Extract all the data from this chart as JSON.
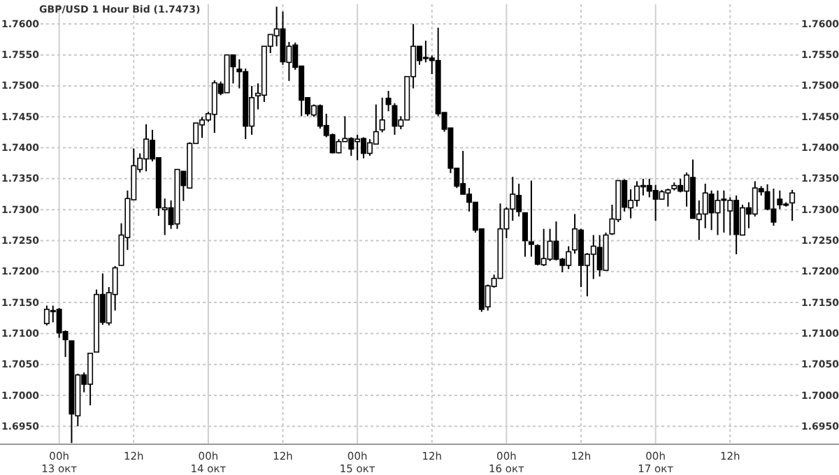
{
  "chart_data": {
    "type": "candlestick",
    "title": "GBP/USD 1 Hour Bid (1.7473)",
    "categories": [
      null,
      null,
      "00h\n13 окт",
      null,
      null,
      null,
      null,
      null,
      null,
      null,
      null,
      null,
      null,
      null,
      "12h",
      null,
      null,
      null,
      null,
      null,
      null,
      null,
      null,
      null,
      null,
      null,
      "00h\n14 окт",
      null,
      null,
      null,
      null,
      null,
      null,
      null,
      null,
      null,
      null,
      null,
      "12h",
      null,
      null,
      null,
      null,
      null,
      null,
      null,
      null,
      null,
      null,
      null,
      "00h\n15 окт",
      null,
      null,
      null,
      null,
      null,
      null,
      null,
      null,
      null,
      null,
      null,
      "12h",
      null,
      null,
      null,
      null,
      null,
      null,
      null,
      null,
      null,
      null,
      null,
      "00h\n16 окт",
      null,
      null,
      null,
      null,
      null,
      null,
      null,
      null,
      null,
      null,
      null,
      "12h",
      null,
      null,
      null,
      null,
      null,
      null,
      null,
      null,
      null,
      null,
      null,
      "00h\n17 окт",
      null,
      null,
      null,
      null,
      null,
      null,
      null,
      null,
      null,
      null,
      null,
      "12h",
      null,
      null,
      null,
      null,
      null,
      null,
      null,
      null,
      null,
      null
    ],
    "ohlc": [
      [
        1.7116,
        1.7145,
        1.7113,
        1.7139
      ],
      [
        1.7137,
        1.7145,
        1.7118,
        1.7136
      ],
      [
        1.7139,
        1.7141,
        1.7093,
        1.7101
      ],
      [
        1.7103,
        1.7105,
        1.7062,
        1.709
      ],
      [
        1.7088,
        1.7088,
        1.6923,
        1.697
      ],
      [
        1.6967,
        1.7035,
        1.695,
        1.7033
      ],
      [
        1.7033,
        1.7037,
        1.7005,
        1.7018
      ],
      [
        1.7018,
        1.7068,
        1.6984,
        1.7068
      ],
      [
        1.707,
        1.7171,
        1.707,
        1.7163
      ],
      [
        1.7163,
        1.7197,
        1.7114,
        1.7118
      ],
      [
        1.7117,
        1.7175,
        1.7113,
        1.7166
      ],
      [
        1.7163,
        1.7209,
        1.7137,
        1.7206
      ],
      [
        1.721,
        1.7278,
        1.721,
        1.7259
      ],
      [
        1.7255,
        1.7331,
        1.7235,
        1.7318
      ],
      [
        1.7316,
        1.7399,
        1.7316,
        1.7371
      ],
      [
        1.7365,
        1.7391,
        1.736,
        1.7383
      ],
      [
        1.7382,
        1.7438,
        1.7362,
        1.7414
      ],
      [
        1.7412,
        1.7429,
        1.7378,
        1.7382
      ],
      [
        1.7384,
        1.7384,
        1.729,
        1.7303
      ],
      [
        1.73,
        1.7318,
        1.7259,
        1.7303
      ],
      [
        1.7303,
        1.7315,
        1.7269,
        1.7276
      ],
      [
        1.7277,
        1.7365,
        1.7269,
        1.7365
      ],
      [
        1.7362,
        1.7362,
        1.7314,
        1.7339
      ],
      [
        1.7335,
        1.7409,
        1.7334,
        1.7407
      ],
      [
        1.7407,
        1.744,
        1.7407,
        1.744
      ],
      [
        1.7437,
        1.745,
        1.7416,
        1.7445
      ],
      [
        1.7445,
        1.7458,
        1.7442,
        1.7455
      ],
      [
        1.7454,
        1.7509,
        1.7424,
        1.7505
      ],
      [
        1.7503,
        1.7507,
        1.7485,
        1.7488
      ],
      [
        1.7489,
        1.755,
        1.7489,
        1.755
      ],
      [
        1.755,
        1.755,
        1.7504,
        1.7531
      ],
      [
        1.7527,
        1.7543,
        1.7496,
        1.7523
      ],
      [
        1.7523,
        1.7528,
        1.7414,
        1.7435
      ],
      [
        1.7435,
        1.75,
        1.7421,
        1.7481
      ],
      [
        1.7484,
        1.7504,
        1.7462,
        1.7488
      ],
      [
        1.7485,
        1.7564,
        1.7474,
        1.7564
      ],
      [
        1.7564,
        1.7583,
        1.7553,
        1.7583
      ],
      [
        1.7581,
        1.7628,
        1.7564,
        1.7592
      ],
      [
        1.7592,
        1.762,
        1.7534,
        1.7539
      ],
      [
        1.7538,
        1.7571,
        1.7508,
        1.7564
      ],
      [
        1.7566,
        1.757,
        1.7526,
        1.753
      ],
      [
        1.7532,
        1.7532,
        1.7451,
        1.7477
      ],
      [
        1.7481,
        1.7481,
        1.7451,
        1.7455
      ],
      [
        1.7453,
        1.747,
        1.745,
        1.7468
      ],
      [
        1.7468,
        1.747,
        1.7431,
        1.7435
      ],
      [
        1.7436,
        1.7455,
        1.7417,
        1.742
      ],
      [
        1.7421,
        1.7423,
        1.7391,
        1.7392
      ],
      [
        1.7392,
        1.7414,
        1.7391,
        1.741
      ],
      [
        1.741,
        1.7451,
        1.741,
        1.7415
      ],
      [
        1.7415,
        1.7417,
        1.7387,
        1.7398
      ],
      [
        1.741,
        1.7421,
        1.738,
        1.7414
      ],
      [
        1.7415,
        1.7417,
        1.7383,
        1.7391
      ],
      [
        1.7391,
        1.7414,
        1.7387,
        1.7408
      ],
      [
        1.7406,
        1.747,
        1.7406,
        1.7426
      ],
      [
        1.7429,
        1.7481,
        1.7425,
        1.7445
      ],
      [
        1.748,
        1.7492,
        1.7459,
        1.747
      ],
      [
        1.7468,
        1.7472,
        1.7421,
        1.7435
      ],
      [
        1.7435,
        1.7451,
        1.743,
        1.7445
      ],
      [
        1.7445,
        1.7515,
        1.7445,
        1.7515
      ],
      [
        1.7515,
        1.76,
        1.7496,
        1.7564
      ],
      [
        1.7564,
        1.7564,
        1.7534,
        1.7541
      ],
      [
        1.7546,
        1.7573,
        1.7538,
        1.7545
      ],
      [
        1.7545,
        1.7549,
        1.7519,
        1.7541
      ],
      [
        1.7541,
        1.7594,
        1.7451,
        1.7455
      ],
      [
        1.7457,
        1.7457,
        1.7426,
        1.743
      ],
      [
        1.7432,
        1.7432,
        1.7359,
        1.7367
      ],
      [
        1.7367,
        1.7367,
        1.7335,
        1.7338
      ],
      [
        1.7342,
        1.7395,
        1.7325,
        1.7325
      ],
      [
        1.7325,
        1.7335,
        1.7297,
        1.7312
      ],
      [
        1.7312,
        1.7312,
        1.7263,
        1.7267
      ],
      [
        1.7269,
        1.7269,
        1.7135,
        1.7139
      ],
      [
        1.7143,
        1.7179,
        1.7137,
        1.7177
      ],
      [
        1.7176,
        1.7195,
        1.7174,
        1.7189
      ],
      [
        1.7189,
        1.731,
        1.7189,
        1.7269
      ],
      [
        1.7269,
        1.7304,
        1.7254,
        1.7301
      ],
      [
        1.7301,
        1.7353,
        1.7282,
        1.7325
      ],
      [
        1.7323,
        1.7342,
        1.7289,
        1.7297
      ],
      [
        1.7295,
        1.7295,
        1.7224,
        1.725
      ],
      [
        1.7248,
        1.7347,
        1.7224,
        1.7244
      ],
      [
        1.7242,
        1.7244,
        1.721,
        1.7212
      ],
      [
        1.7211,
        1.7269,
        1.7209,
        1.7221
      ],
      [
        1.722,
        1.7269,
        1.7217,
        1.7249
      ],
      [
        1.7249,
        1.7281,
        1.7218,
        1.722
      ],
      [
        1.722,
        1.7222,
        1.7199,
        1.721
      ],
      [
        1.721,
        1.7241,
        1.7204,
        1.7232
      ],
      [
        1.7235,
        1.7293,
        1.7229,
        1.7269
      ],
      [
        1.7267,
        1.7269,
        1.7175,
        1.721
      ],
      [
        1.721,
        1.723,
        1.716,
        1.7228
      ],
      [
        1.7228,
        1.7259,
        1.7188,
        1.7241
      ],
      [
        1.7239,
        1.7259,
        1.7192,
        1.7203
      ],
      [
        1.7202,
        1.7263,
        1.7202,
        1.7259
      ],
      [
        1.7261,
        1.7308,
        1.7259,
        1.7285
      ],
      [
        1.7284,
        1.7347,
        1.728,
        1.7347
      ],
      [
        1.7347,
        1.7349,
        1.7297,
        1.7304
      ],
      [
        1.7303,
        1.7333,
        1.7286,
        1.7315
      ],
      [
        1.7315,
        1.7346,
        1.7305,
        1.7338
      ],
      [
        1.7337,
        1.735,
        1.7323,
        1.7339
      ],
      [
        1.7339,
        1.735,
        1.732,
        1.733
      ],
      [
        1.7331,
        1.734,
        1.7282,
        1.7317
      ],
      [
        1.7317,
        1.7332,
        1.7316,
        1.7329
      ],
      [
        1.7327,
        1.7334,
        1.7305,
        1.7332
      ],
      [
        1.7334,
        1.7344,
        1.7331,
        1.7339
      ],
      [
        1.7339,
        1.735,
        1.7328,
        1.733
      ],
      [
        1.733,
        1.736,
        1.7305,
        1.7356
      ],
      [
        1.7352,
        1.7381,
        1.7286,
        1.7286
      ],
      [
        1.7284,
        1.7315,
        1.7251,
        1.7293
      ],
      [
        1.7293,
        1.7342,
        1.727,
        1.7327
      ],
      [
        1.7325,
        1.7331,
        1.7267,
        1.7295
      ],
      [
        1.7295,
        1.7331,
        1.7259,
        1.7315
      ],
      [
        1.7316,
        1.7331,
        1.7263,
        1.7317
      ],
      [
        1.7298,
        1.732,
        1.7259,
        1.7315
      ],
      [
        1.7315,
        1.7323,
        1.7228,
        1.726
      ],
      [
        1.7259,
        1.7308,
        1.7259,
        1.7303
      ],
      [
        1.7303,
        1.7312,
        1.727,
        1.7293
      ],
      [
        1.7293,
        1.7346,
        1.7289,
        1.7335
      ],
      [
        1.7334,
        1.7338,
        1.7323,
        1.7329
      ],
      [
        1.7329,
        1.7341,
        1.7299,
        1.7301
      ],
      [
        1.7301,
        1.7334,
        1.7274,
        1.728
      ],
      [
        1.7317,
        1.7331,
        1.7301,
        1.7308
      ],
      [
        1.7308,
        1.7312,
        1.7305,
        1.7309
      ],
      [
        1.7311,
        1.7332,
        1.7282,
        1.7327
      ]
    ],
    "ylim": [
      1.6921,
      1.7632
    ],
    "yticks": [
      {
        "value": 1.695,
        "label": "1.6950"
      },
      {
        "value": 1.7,
        "label": "1.7000"
      },
      {
        "value": 1.705,
        "label": "1.7050"
      },
      {
        "value": 1.71,
        "label": "1.7100"
      },
      {
        "value": 1.715,
        "label": "1.7150"
      },
      {
        "value": 1.72,
        "label": "1.7200"
      },
      {
        "value": 1.725,
        "label": "1.7250"
      },
      {
        "value": 1.73,
        "label": "1.7300"
      },
      {
        "value": 1.735,
        "label": "1.7350"
      },
      {
        "value": 1.74,
        "label": "1.7400"
      },
      {
        "value": 1.745,
        "label": "1.7450"
      },
      {
        "value": 1.75,
        "label": "1.7500"
      },
      {
        "value": 1.755,
        "label": "1.7550"
      },
      {
        "value": 1.76,
        "label": "1.7600"
      }
    ],
    "y2lim": [
      1.6921,
      1.7632
    ],
    "y2ticks": [
      {
        "value": 1.695,
        "label": "1.6950"
      },
      {
        "value": 1.7,
        "label": "1.7000"
      },
      {
        "value": 1.705,
        "label": "1.7050"
      },
      {
        "value": 1.71,
        "label": "1.7100"
      },
      {
        "value": 1.715,
        "label": "1.7150"
      },
      {
        "value": 1.72,
        "label": "1.7200"
      },
      {
        "value": 1.725,
        "label": "1.7250"
      },
      {
        "value": 1.73,
        "label": "1.7300"
      },
      {
        "value": 1.735,
        "label": "1.7350"
      },
      {
        "value": 1.74,
        "label": "1.7400"
      },
      {
        "value": 1.745,
        "label": "1.7450"
      },
      {
        "value": 1.75,
        "label": "1.7500"
      },
      {
        "value": 1.755,
        "label": "1.7550"
      },
      {
        "value": 1.76,
        "label": "1.7600"
      }
    ],
    "grid": true
  }
}
